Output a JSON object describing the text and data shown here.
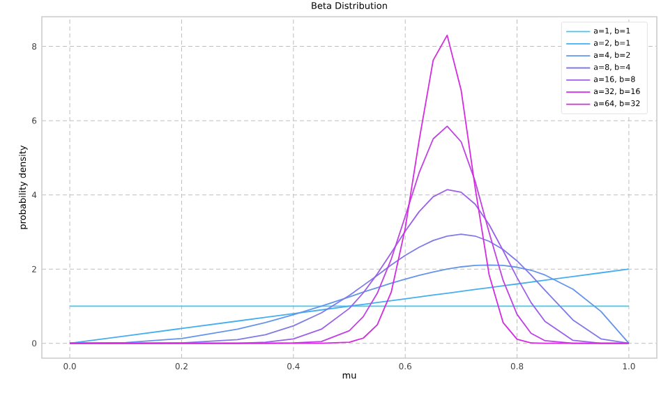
{
  "chart_data": {
    "type": "line",
    "title": "Beta Distribution",
    "xlabel": "mu",
    "ylabel": "probability density",
    "x": [
      0,
      0.1,
      0.2,
      0.3,
      0.35,
      0.4,
      0.45,
      0.5,
      0.525,
      0.55,
      0.575,
      0.6,
      0.625,
      0.65,
      0.675,
      0.7,
      0.725,
      0.75,
      0.775,
      0.8,
      0.825,
      0.85,
      0.9,
      0.95,
      1
    ],
    "series": [
      {
        "name": "a=1, b=1",
        "color": "#3ec8f2",
        "values": [
          1,
          1,
          1,
          1,
          1,
          1,
          1,
          1,
          1,
          1,
          1,
          1,
          1,
          1,
          1,
          1,
          1,
          1,
          1,
          1,
          1,
          1,
          1,
          1,
          1
        ]
      },
      {
        "name": "a=2, b=1",
        "color": "#45aef0",
        "values": [
          0,
          0.2,
          0.4,
          0.6,
          0.7,
          0.8,
          0.9,
          1,
          1.05,
          1.1,
          1.15,
          1.2,
          1.25,
          1.3,
          1.35,
          1.4,
          1.45,
          1.5,
          1.55,
          1.6,
          1.65,
          1.7,
          1.8,
          1.9,
          2
        ]
      },
      {
        "name": "a=4, b=2",
        "color": "#6494ea",
        "values": [
          0,
          0.02,
          0.13,
          0.38,
          0.56,
          0.77,
          1.0,
          1.25,
          1.38,
          1.5,
          1.62,
          1.73,
          1.83,
          1.92,
          2.0,
          2.06,
          2.1,
          2.11,
          2.1,
          2.05,
          1.97,
          1.84,
          1.46,
          0.86,
          0
        ]
      },
      {
        "name": "a=8, b=4",
        "color": "#7f7ae8",
        "values": [
          0,
          0,
          0.01,
          0.1,
          0.23,
          0.47,
          0.82,
          1.29,
          1.56,
          1.83,
          2.11,
          2.37,
          2.59,
          2.77,
          2.89,
          2.94,
          2.89,
          2.75,
          2.53,
          2.22,
          1.84,
          1.43,
          0.63,
          0.12,
          0
        ]
      },
      {
        "name": "a=16, b=8",
        "color": "#9c60e6",
        "values": [
          0,
          0,
          0,
          0.0,
          0.03,
          0.12,
          0.38,
          0.94,
          1.36,
          1.87,
          2.44,
          3.02,
          3.55,
          3.95,
          4.14,
          4.07,
          3.75,
          3.2,
          2.5,
          1.77,
          1.1,
          0.59,
          0.08,
          0,
          0
        ]
      },
      {
        "name": "a=32, b=16",
        "color": "#c040e2",
        "values": [
          0,
          0,
          0,
          0,
          0,
          0.01,
          0.05,
          0.34,
          0.72,
          1.35,
          2.27,
          3.42,
          4.6,
          5.51,
          5.85,
          5.43,
          4.37,
          2.99,
          1.7,
          0.78,
          0.27,
          0.07,
          0,
          0,
          0
        ]
      },
      {
        "name": "a=64, b=32",
        "color": "#d42ae0",
        "values": [
          0,
          0,
          0,
          0,
          0,
          0,
          0,
          0.03,
          0.14,
          0.5,
          1.38,
          3.1,
          5.48,
          7.63,
          8.3,
          6.82,
          4.2,
          1.85,
          0.56,
          0.11,
          0.01,
          0,
          0,
          0,
          0
        ]
      }
    ],
    "xlim": [
      -0.05,
      1.05
    ],
    "ylim": [
      -0.4,
      8.8
    ],
    "xticks": [
      {
        "value": 0,
        "label": "0.0"
      },
      {
        "value": 0.2,
        "label": "0.2"
      },
      {
        "value": 0.4,
        "label": "0.4"
      },
      {
        "value": 0.6,
        "label": "0.6"
      },
      {
        "value": 0.8,
        "label": "0.8"
      },
      {
        "value": 1,
        "label": "1.0"
      }
    ],
    "yticks": [
      0,
      2,
      4,
      6,
      8
    ],
    "grid": true,
    "legend": "top right",
    "line_style": "solid",
    "marker": "none"
  }
}
